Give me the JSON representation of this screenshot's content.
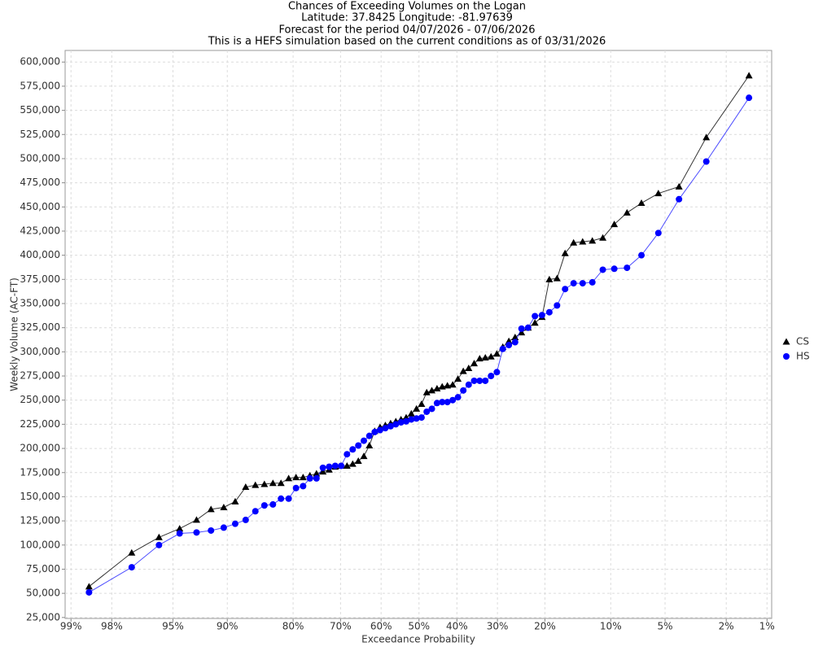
{
  "chart_data": {
    "type": "line",
    "title": [
      "Chances of Exceeding Volumes on the Logan",
      "Latitude: 37.8425 Longitude: -81.97639",
      "Forecast for the period 04/07/2026 - 07/06/2026",
      "This is a HEFS simulation based on the current conditions as of 03/31/2026"
    ],
    "x_label": "Exceedance Probability",
    "y_label": "Weekly Volume (AC-FT)",
    "xscale": "probability",
    "grid": true,
    "legend": "right",
    "xlim": [
      99.1,
      0.92
    ],
    "ylim": [
      24000,
      612000
    ],
    "xticks": [
      {
        "value": 99,
        "label": "99%"
      },
      {
        "value": 98,
        "label": "98%"
      },
      {
        "value": 95,
        "label": "95%"
      },
      {
        "value": 90,
        "label": "90%"
      },
      {
        "value": 80,
        "label": "80%"
      },
      {
        "value": 70,
        "label": "70%"
      },
      {
        "value": 60,
        "label": "60%"
      },
      {
        "value": 50,
        "label": "50%"
      },
      {
        "value": 40,
        "label": "40%"
      },
      {
        "value": 30,
        "label": "30%"
      },
      {
        "value": 20,
        "label": "20%"
      },
      {
        "value": 10,
        "label": "10%"
      },
      {
        "value": 5,
        "label": "5%"
      },
      {
        "value": 2,
        "label": "2%"
      },
      {
        "value": 1,
        "label": "1%"
      }
    ],
    "yticks": [
      {
        "value": 25000,
        "label": "25,000"
      },
      {
        "value": 50000,
        "label": "50,000"
      },
      {
        "value": 75000,
        "label": "75,000"
      },
      {
        "value": 100000,
        "label": "100,000"
      },
      {
        "value": 125000,
        "label": "125,000"
      },
      {
        "value": 150000,
        "label": "150,000"
      },
      {
        "value": 175000,
        "label": "175,000"
      },
      {
        "value": 200000,
        "label": "200,000"
      },
      {
        "value": 225000,
        "label": "225,000"
      },
      {
        "value": 250000,
        "label": "250,000"
      },
      {
        "value": 275000,
        "label": "275,000"
      },
      {
        "value": 300000,
        "label": "300,000"
      },
      {
        "value": 325000,
        "label": "325,000"
      },
      {
        "value": 350000,
        "label": "350,000"
      },
      {
        "value": 375000,
        "label": "375,000"
      },
      {
        "value": 400000,
        "label": "400,000"
      },
      {
        "value": 425000,
        "label": "425,000"
      },
      {
        "value": 450000,
        "label": "450,000"
      },
      {
        "value": 475000,
        "label": "475,000"
      },
      {
        "value": 500000,
        "label": "500,000"
      },
      {
        "value": 525000,
        "label": "525,000"
      },
      {
        "value": 550000,
        "label": "550,000"
      },
      {
        "value": 575000,
        "label": "575,000"
      },
      {
        "value": 600000,
        "label": "600,000"
      }
    ],
    "x": [
      98.63,
      97.26,
      95.89,
      94.52,
      93.15,
      91.78,
      90.41,
      89.04,
      87.67,
      86.3,
      84.93,
      83.56,
      82.19,
      80.82,
      79.45,
      78.08,
      76.71,
      75.34,
      73.97,
      72.6,
      71.23,
      69.86,
      68.49,
      67.12,
      65.75,
      64.38,
      63.01,
      61.64,
      60.27,
      58.9,
      57.53,
      56.16,
      54.79,
      53.42,
      52.05,
      50.68,
      49.32,
      47.95,
      46.58,
      45.21,
      43.84,
      42.47,
      41.1,
      39.73,
      38.36,
      36.99,
      35.62,
      34.25,
      32.88,
      31.51,
      30.14,
      28.77,
      27.4,
      26.03,
      24.66,
      23.29,
      21.92,
      20.55,
      19.18,
      17.81,
      16.44,
      15.07,
      13.7,
      12.33,
      10.96,
      9.59,
      8.22,
      6.85,
      5.48,
      4.11,
      2.74,
      1.37
    ],
    "series": [
      {
        "name": "CS",
        "color": "#000000",
        "marker": "triangle",
        "values": [
          57000,
          92000,
          108000,
          117000,
          126000,
          137000,
          139000,
          145000,
          160000,
          162000,
          163000,
          164000,
          164000,
          169000,
          170000,
          170000,
          172000,
          174000,
          176000,
          178000,
          181000,
          182000,
          182000,
          184000,
          187000,
          192000,
          203000,
          218000,
          222000,
          224000,
          226000,
          228000,
          230000,
          232000,
          236000,
          241000,
          246000,
          258000,
          260000,
          262000,
          264000,
          265000,
          266000,
          272000,
          280000,
          283000,
          288000,
          293000,
          294000,
          295000,
          298000,
          305000,
          311000,
          315000,
          320000,
          325000,
          330000,
          336000,
          375000,
          376000,
          402000,
          413000,
          414000,
          415000,
          418000,
          432000,
          444000,
          454000,
          464000,
          471000,
          522000,
          586000
        ]
      },
      {
        "name": "HS",
        "color": "#0000ff",
        "marker": "circle",
        "values": [
          51000,
          77000,
          100000,
          112000,
          113000,
          115000,
          118000,
          122000,
          126000,
          135000,
          141000,
          142000,
          148000,
          148000,
          159000,
          161000,
          169000,
          169000,
          180000,
          181000,
          182000,
          182000,
          194000,
          199000,
          203000,
          208000,
          213000,
          217000,
          219000,
          221000,
          223000,
          225000,
          227000,
          228000,
          230000,
          231000,
          232000,
          238000,
          241000,
          247000,
          248000,
          248000,
          250000,
          253000,
          260000,
          266000,
          270000,
          270000,
          270000,
          275000,
          279000,
          303000,
          307000,
          310000,
          324000,
          325000,
          337000,
          338000,
          341000,
          348000,
          365000,
          371000,
          371000,
          372000,
          385000,
          386000,
          387000,
          400000,
          423000,
          458000,
          497000,
          563000
        ]
      }
    ]
  }
}
